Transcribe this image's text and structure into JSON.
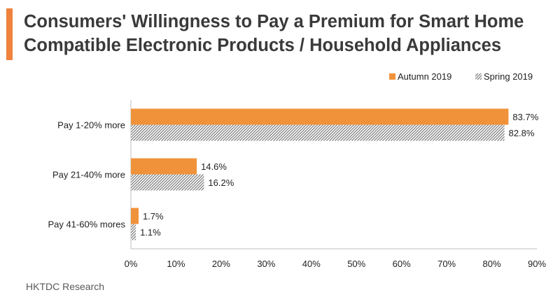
{
  "header": {
    "title_line1": "Consumers' Willingness to Pay a Premium for Smart Home",
    "title_line2": "Compatible Electronic Products / Household Appliances"
  },
  "source": "HKTDC Research",
  "colors": {
    "accent": "#F0823C",
    "autumn": "#F0923A",
    "spring_hatch": "#7F7F7F",
    "axis": "#BFBFBF",
    "title": "#3A3A3A"
  },
  "chart_data": {
    "type": "bar",
    "orientation": "horizontal",
    "title": "",
    "xlabel": "",
    "ylabel": "",
    "categories": [
      "Pay 1-20% more",
      "Pay 21-40% more",
      "Pay 41-60% mores"
    ],
    "series": [
      {
        "name": "Autumn 2019",
        "values": [
          83.7,
          14.6,
          1.7
        ],
        "labels": [
          "83.7%",
          "14.6%",
          "1.7%"
        ],
        "fill": "solid"
      },
      {
        "name": "Spring 2019",
        "values": [
          82.8,
          16.2,
          1.1
        ],
        "labels": [
          "82.8%",
          "16.2%",
          "1.1%"
        ],
        "fill": "hatched"
      }
    ],
    "xlim": [
      0,
      90
    ],
    "xticks": [
      0,
      10,
      20,
      30,
      40,
      50,
      60,
      70,
      80,
      90
    ],
    "xtick_labels": [
      "0%",
      "10%",
      "20%",
      "30%",
      "40%",
      "50%",
      "60%",
      "70%",
      "80%",
      "90%"
    ],
    "grid": false,
    "legend_position": "top-right"
  }
}
